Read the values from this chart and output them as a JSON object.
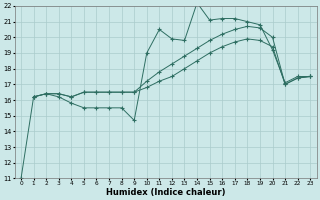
{
  "xlabel": "Humidex (Indice chaleur)",
  "bg_color": "#cce8e8",
  "grid_color": "#aacccc",
  "line_color": "#2e6e62",
  "xlim": [
    -0.5,
    23.5
  ],
  "ylim": [
    11,
    22
  ],
  "xticks": [
    0,
    1,
    2,
    3,
    4,
    5,
    6,
    7,
    8,
    9,
    10,
    11,
    12,
    13,
    14,
    15,
    16,
    17,
    18,
    19,
    20,
    21,
    22,
    23
  ],
  "yticks": [
    11,
    12,
    13,
    14,
    15,
    16,
    17,
    18,
    19,
    20,
    21,
    22
  ],
  "s0_x": [
    0,
    1,
    2,
    3,
    4,
    5,
    6,
    7,
    8,
    9,
    10,
    11,
    12,
    13,
    14,
    15,
    16,
    17,
    18,
    19,
    20,
    21,
    22,
    23
  ],
  "s0_y": [
    11,
    16.2,
    16.4,
    16.2,
    15.8,
    15.5,
    15.5,
    15.5,
    15.5,
    14.7,
    19.0,
    20.5,
    19.9,
    19.8,
    22.2,
    21.1,
    21.2,
    21.2,
    21.0,
    20.8,
    19.2,
    17.1,
    17.5,
    17.5
  ],
  "s1_x": [
    1,
    2,
    3,
    4,
    5,
    6,
    7,
    8,
    9,
    10,
    11,
    12,
    13,
    14,
    15,
    16,
    17,
    18,
    19,
    20,
    21,
    22,
    23
  ],
  "s1_y": [
    16.2,
    16.4,
    16.4,
    16.2,
    16.5,
    16.5,
    16.5,
    16.5,
    16.5,
    17.2,
    17.8,
    18.3,
    18.8,
    19.3,
    19.8,
    20.2,
    20.5,
    20.7,
    20.6,
    20.0,
    17.0,
    17.4,
    17.5
  ],
  "s2_x": [
    1,
    2,
    3,
    4,
    5,
    6,
    7,
    8,
    9,
    10,
    11,
    12,
    13,
    14,
    15,
    16,
    17,
    18,
    19,
    20,
    21,
    22,
    23
  ],
  "s2_y": [
    16.2,
    16.4,
    16.4,
    16.2,
    16.5,
    16.5,
    16.5,
    16.5,
    16.5,
    16.8,
    17.2,
    17.5,
    18.0,
    18.5,
    19.0,
    19.4,
    19.7,
    19.9,
    19.8,
    19.4,
    17.0,
    17.4,
    17.5
  ]
}
